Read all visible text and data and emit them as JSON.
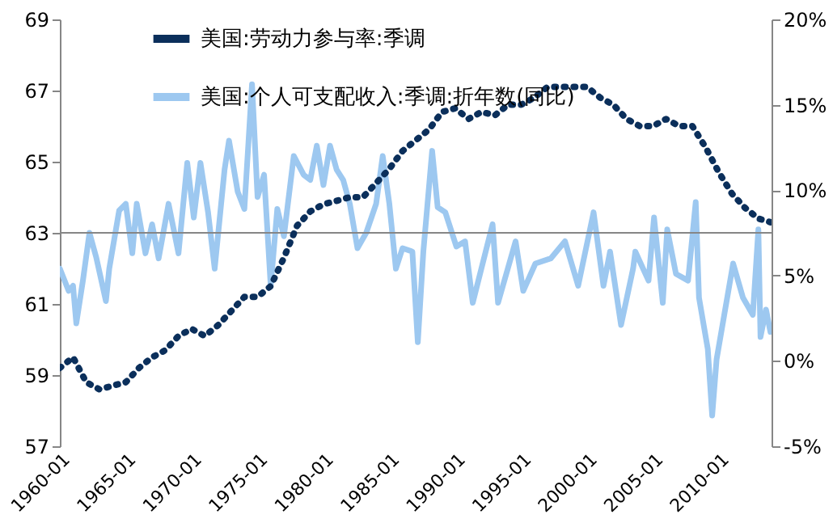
{
  "chart_data": {
    "type": "line",
    "xlim": [
      "1960-01",
      "2014-01"
    ],
    "xticks": [
      "1960-01",
      "1965-01",
      "1970-01",
      "1975-01",
      "1980-01",
      "1985-01",
      "1990-01",
      "1995-01",
      "2000-01",
      "2005-01",
      "2010-01"
    ],
    "ylim": [
      57,
      69
    ],
    "yticks": [
      57,
      59,
      61,
      63,
      65,
      67,
      69
    ],
    "y2lim": [
      -5,
      20
    ],
    "y2ticks": [
      {
        "value": -5,
        "label": "-5%"
      },
      {
        "value": 0,
        "label": "0%"
      },
      {
        "value": 5,
        "label": "5%"
      },
      {
        "value": 10,
        "label": "10%"
      },
      {
        "value": 15,
        "label": "15%"
      },
      {
        "value": 20,
        "label": "20%"
      }
    ],
    "ref_lines": [
      {
        "axis": "y",
        "value": 63,
        "color": "#868686"
      }
    ],
    "legend": "top",
    "grid": false,
    "series": [
      {
        "name": "美国:劳动力参与率:季调",
        "color": "#0b2f5b",
        "line_style": "dotted",
        "x": [
          "1960-01",
          "1961-01",
          "1962-01",
          "1963-01",
          "1964-01",
          "1965-01",
          "1966-01",
          "1967-01",
          "1968-01",
          "1969-01",
          "1970-01",
          "1971-01",
          "1972-01",
          "1973-01",
          "1974-01",
          "1975-01",
          "1976-01",
          "1977-01",
          "1978-01",
          "1979-01",
          "1980-01",
          "1981-01",
          "1982-01",
          "1983-01",
          "1984-01",
          "1985-01",
          "1986-01",
          "1987-01",
          "1988-01",
          "1989-01",
          "1990-01",
          "1991-01",
          "1992-01",
          "1993-01",
          "1994-01",
          "1995-01",
          "1996-01",
          "1997-01",
          "1998-01",
          "1999-01",
          "2000-01",
          "2001-01",
          "2002-01",
          "2003-01",
          "2004-01",
          "2005-01",
          "2006-01",
          "2007-01",
          "2008-01",
          "2009-01",
          "2010-01",
          "2011-01",
          "2012-01",
          "2013-01",
          "2013-12"
        ],
        "values": [
          59.2,
          59.5,
          58.8,
          58.6,
          58.7,
          58.8,
          59.2,
          59.5,
          59.7,
          60.1,
          60.3,
          60.1,
          60.4,
          60.8,
          61.2,
          61.2,
          61.5,
          62.3,
          63.2,
          63.6,
          63.8,
          63.9,
          64.0,
          64.0,
          64.4,
          64.8,
          65.3,
          65.6,
          65.9,
          66.4,
          66.5,
          66.2,
          66.4,
          66.3,
          66.6,
          66.6,
          66.8,
          67.1,
          67.1,
          67.1,
          67.1,
          66.8,
          66.6,
          66.2,
          66.0,
          66.0,
          66.2,
          66.0,
          66.0,
          65.4,
          64.7,
          64.1,
          63.7,
          63.4,
          63.3
        ]
      },
      {
        "name": "美国:个人可支配收入:季调:折年数(同比)",
        "color": "#9dc8f0",
        "axis": "y2",
        "line_style": "solid",
        "x": [
          "1960-01",
          "1960-09",
          "1961-01",
          "1961-04",
          "1961-10",
          "1962-04",
          "1962-10",
          "1963-07",
          "1963-10",
          "1964-07",
          "1965-01",
          "1965-07",
          "1965-11",
          "1966-07",
          "1967-01",
          "1967-07",
          "1968-04",
          "1969-01",
          "1969-09",
          "1970-03",
          "1970-09",
          "1971-04",
          "1971-10",
          "1972-07",
          "1972-11",
          "1973-07",
          "1974-01",
          "1974-08",
          "1975-01",
          "1975-07",
          "1976-01",
          "1976-07",
          "1977-01",
          "1977-10",
          "1978-07",
          "1979-01",
          "1979-07",
          "1980-01",
          "1980-07",
          "1981-01",
          "1981-07",
          "1982-01",
          "1982-08",
          "1983-04",
          "1984-01",
          "1984-07",
          "1985-01",
          "1985-07",
          "1986-01",
          "1986-10",
          "1987-03",
          "1987-08",
          "1988-04",
          "1988-09",
          "1989-04",
          "1990-02",
          "1990-10",
          "1991-05",
          "1992-11",
          "1993-04",
          "1994-08",
          "1995-03",
          "1996-02",
          "1997-04",
          "1998-05",
          "1999-05",
          "2000-07",
          "2001-04",
          "2001-10",
          "2002-08",
          "2003-07",
          "2003-09",
          "2004-09",
          "2005-02",
          "2005-10",
          "2006-02",
          "2006-10",
          "2007-09",
          "2008-04",
          "2008-07",
          "2009-03",
          "2009-07",
          "2009-11",
          "2010-06",
          "2011-02",
          "2011-11",
          "2012-08",
          "2013-01",
          "2013-03",
          "2013-08",
          "2013-12"
        ],
        "values": [
          5.4,
          4.1,
          4.4,
          2.2,
          4.7,
          7.5,
          6.1,
          3.5,
          5.4,
          8.8,
          9.2,
          6.3,
          9.2,
          6.3,
          8.0,
          6.0,
          9.2,
          6.3,
          11.6,
          8.4,
          11.6,
          8.7,
          5.4,
          11.2,
          12.9,
          9.9,
          8.9,
          16.2,
          9.6,
          10.9,
          4.4,
          8.9,
          7.3,
          12.0,
          10.9,
          10.6,
          12.6,
          10.3,
          12.6,
          11.2,
          10.6,
          9.2,
          6.6,
          7.5,
          9.2,
          12.0,
          9.2,
          5.4,
          6.6,
          6.4,
          1.1,
          6.4,
          12.3,
          9.0,
          8.7,
          6.7,
          7.0,
          3.4,
          8.0,
          3.4,
          7.0,
          4.1,
          5.7,
          6.0,
          7.0,
          4.4,
          8.7,
          4.4,
          6.4,
          2.1,
          5.4,
          6.4,
          4.7,
          8.4,
          3.4,
          7.7,
          5.1,
          4.7,
          9.3,
          3.7,
          0.7,
          -3.2,
          0.1,
          2.7,
          5.7,
          3.7,
          2.7,
          7.7,
          1.4,
          3.0,
          1.7
        ]
      }
    ]
  }
}
